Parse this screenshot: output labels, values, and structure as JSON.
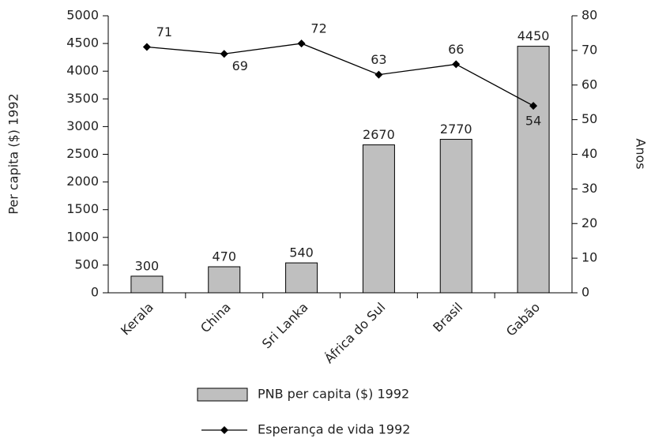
{
  "chart_data": {
    "type": "bar_line",
    "categories": [
      "Kerala",
      "China",
      "Sri Lanka",
      "África do Sul",
      "Brasil",
      "Gabão"
    ],
    "series": [
      {
        "name": "PNB per capita ($) 1992",
        "type": "bar",
        "color": "#bfbfbf",
        "values": [
          300,
          470,
          540,
          2670,
          2770,
          4450
        ]
      },
      {
        "name": "Esperança de vida 1992",
        "type": "line",
        "axis": "y2",
        "color": "#000000",
        "values": [
          71,
          69,
          72,
          63,
          66,
          54
        ]
      }
    ],
    "ylabel": "Per capita ($) 1992",
    "y2label": "Anos",
    "ylim": [
      0,
      5000
    ],
    "yticks": [
      0,
      500,
      1000,
      1500,
      2000,
      2500,
      3000,
      3500,
      4000,
      4500,
      5000
    ],
    "y2lim": [
      0,
      80
    ],
    "y2ticks": [
      0,
      10,
      20,
      30,
      40,
      50,
      60,
      70,
      80
    ],
    "legend": "bottom"
  }
}
